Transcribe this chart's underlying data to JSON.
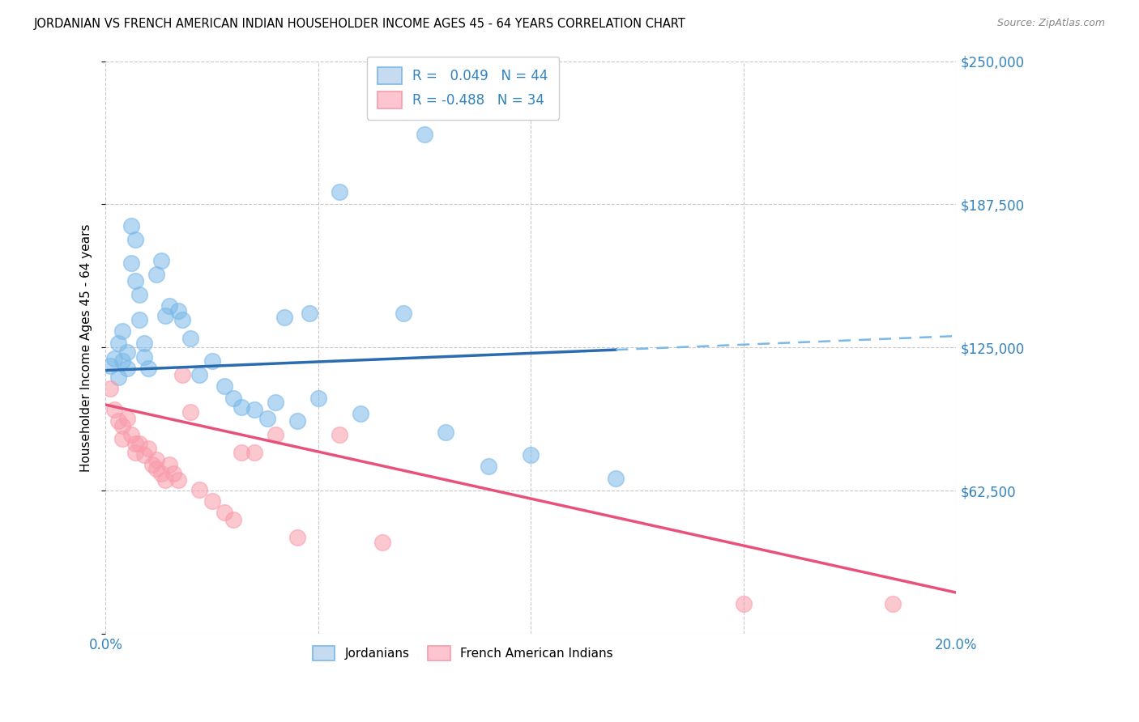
{
  "title": "JORDANIAN VS FRENCH AMERICAN INDIAN HOUSEHOLDER INCOME AGES 45 - 64 YEARS CORRELATION CHART",
  "source": "Source: ZipAtlas.com",
  "ylabel": "Householder Income Ages 45 - 64 years",
  "xlim": [
    0.0,
    0.2
  ],
  "ylim": [
    0,
    250000
  ],
  "yticks": [
    0,
    62500,
    125000,
    187500,
    250000
  ],
  "ytick_labels_right": [
    "",
    "$62,500",
    "$125,000",
    "$187,500",
    "$250,000"
  ],
  "xticks": [
    0.0,
    0.05,
    0.1,
    0.15,
    0.2
  ],
  "xtick_labels": [
    "0.0%",
    "",
    "",
    "",
    "20.0%"
  ],
  "blue_scatter": "#7ab8e8",
  "pink_scatter": "#f99bab",
  "line_blue_solid": "#2b6cb0",
  "line_blue_dash": "#7ab8e8",
  "line_pink": "#e8527a",
  "text_blue": "#3182bd",
  "grid_color": "#c8c8c8",
  "background": "#ffffff",
  "legend_r_blue": " 0.049",
  "legend_n_blue": "44",
  "legend_r_pink": "-0.488",
  "legend_n_pink": "34",
  "blue_patch_face": "#c6dbef",
  "blue_patch_edge": "#7ab8e8",
  "pink_patch_face": "#fcc5d0",
  "pink_patch_edge": "#f99bab",
  "jord_x": [
    0.001,
    0.002,
    0.003,
    0.003,
    0.004,
    0.004,
    0.005,
    0.005,
    0.006,
    0.006,
    0.007,
    0.007,
    0.008,
    0.008,
    0.009,
    0.009,
    0.01,
    0.012,
    0.013,
    0.014,
    0.015,
    0.017,
    0.018,
    0.02,
    0.022,
    0.025,
    0.028,
    0.03,
    0.032,
    0.035,
    0.038,
    0.04,
    0.042,
    0.045,
    0.048,
    0.05,
    0.055,
    0.06,
    0.07,
    0.075,
    0.08,
    0.09,
    0.1,
    0.12
  ],
  "jord_y": [
    117000,
    120000,
    127000,
    112000,
    132000,
    119000,
    123000,
    116000,
    178000,
    162000,
    172000,
    154000,
    148000,
    137000,
    127000,
    121000,
    116000,
    157000,
    163000,
    139000,
    143000,
    141000,
    137000,
    129000,
    113000,
    119000,
    108000,
    103000,
    99000,
    98000,
    94000,
    101000,
    138000,
    93000,
    140000,
    103000,
    193000,
    96000,
    140000,
    218000,
    88000,
    73000,
    78000,
    68000
  ],
  "french_x": [
    0.001,
    0.002,
    0.003,
    0.004,
    0.004,
    0.005,
    0.006,
    0.007,
    0.007,
    0.008,
    0.009,
    0.01,
    0.011,
    0.012,
    0.012,
    0.013,
    0.014,
    0.015,
    0.016,
    0.017,
    0.018,
    0.02,
    0.022,
    0.025,
    0.028,
    0.03,
    0.032,
    0.035,
    0.04,
    0.045,
    0.055,
    0.065,
    0.15,
    0.185
  ],
  "french_y": [
    107000,
    98000,
    93000,
    91000,
    85000,
    94000,
    87000,
    83000,
    79000,
    83000,
    78000,
    81000,
    74000,
    72000,
    76000,
    70000,
    67000,
    74000,
    70000,
    67000,
    113000,
    97000,
    63000,
    58000,
    53000,
    50000,
    79000,
    79000,
    87000,
    42000,
    87000,
    40000,
    13000,
    13000
  ]
}
